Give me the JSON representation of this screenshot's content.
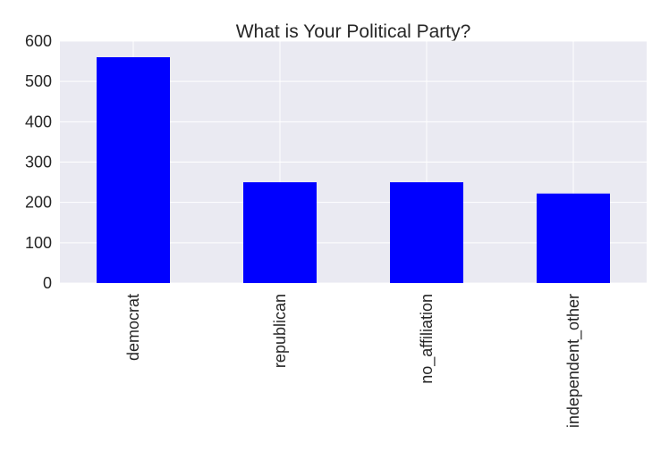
{
  "chart_data": {
    "type": "bar",
    "title": "What is Your Political Party?",
    "xlabel": "",
    "ylabel": "",
    "categories": [
      "democrat",
      "republican",
      "no_affiliation",
      "independent_other"
    ],
    "values": [
      560,
      250,
      250,
      222
    ],
    "ylim": [
      0,
      600
    ],
    "yticks": [
      "0",
      "100",
      "200",
      "300",
      "400",
      "500",
      "600"
    ],
    "grid": true,
    "bar_color": "#0000ff",
    "plot_background": "#eaeaf2",
    "grid_color": "#ffffff",
    "legend": "none"
  }
}
